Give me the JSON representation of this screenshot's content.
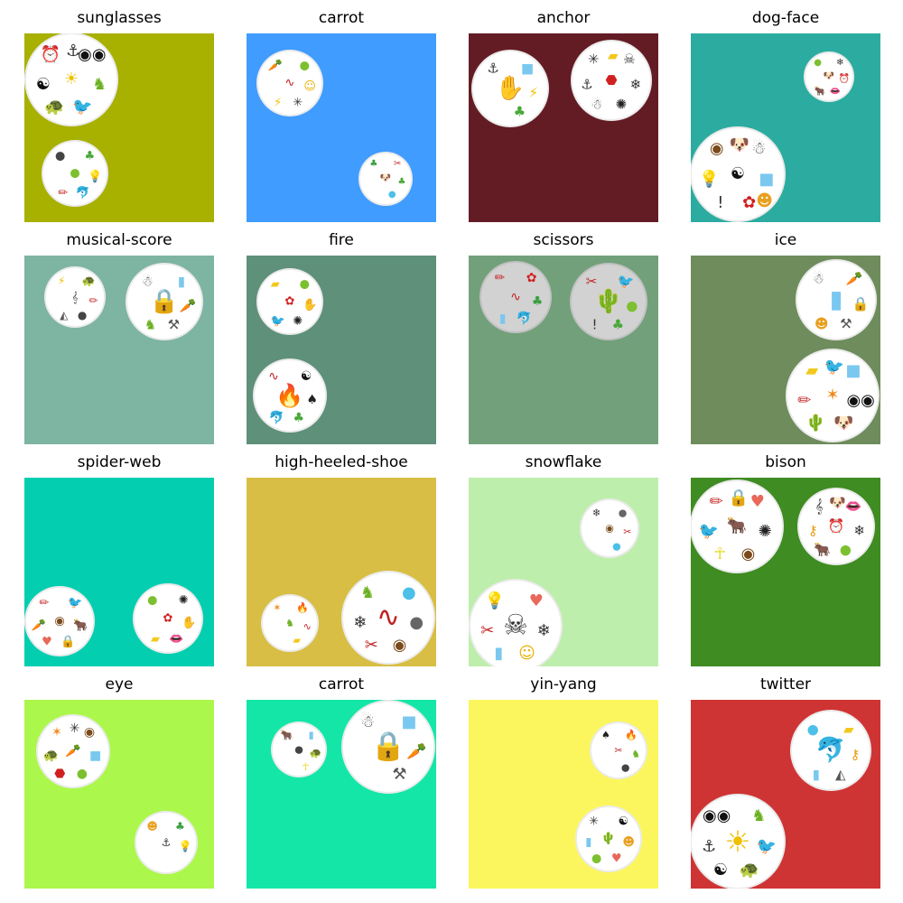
{
  "panels": [
    {
      "label": "sunglasses",
      "bg": "#a8b000",
      "cards": [
        {
          "symbols": [
            "sun",
            "clock",
            "sunglasses",
            "dino",
            "bird",
            "turtle",
            "yinyang",
            "anchor"
          ]
        },
        {
          "symbols": [
            "apple",
            "bomb",
            "leaf",
            "bulb",
            "dolphin",
            "pencil"
          ]
        }
      ]
    },
    {
      "label": "carrot",
      "bg": "#409cff",
      "cards": [
        {
          "symbols": [
            "worm",
            "carrot",
            "apple",
            "smiley",
            "spider",
            "lightning"
          ]
        },
        {
          "symbols": [
            "dog",
            "clover",
            "scissors",
            "leaf",
            "drop"
          ]
        }
      ]
    },
    {
      "label": "anchor",
      "bg": "#641c24",
      "cards": [
        {
          "symbols": [
            "hand",
            "anchor",
            "ice",
            "lightning",
            "leaf"
          ]
        },
        {
          "symbols": [
            "stop",
            "spider",
            "skull",
            "snowflake",
            "spiderweb",
            "snowman",
            "anchor",
            "cheese"
          ]
        }
      ]
    },
    {
      "label": "dog-face",
      "bg": "#2caca0",
      "cards": [
        {
          "symbols": [
            "dog",
            "apple",
            "snowflake",
            "clock",
            "lips",
            "bison"
          ]
        },
        {
          "symbols": [
            "yinyang",
            "eye",
            "snowman",
            "ice",
            "flower",
            "exclam",
            "bulb",
            "dog",
            "ghost"
          ]
        }
      ]
    },
    {
      "label": "musical-score",
      "bg": "#7eb4a2",
      "cards": [
        {
          "symbols": [
            "clef",
            "lightning",
            "turtle",
            "pencil",
            "bomb",
            "igloo"
          ]
        },
        {
          "symbols": [
            "lock",
            "snowman",
            "bottle",
            "carrot",
            "hammer",
            "dino"
          ]
        }
      ]
    },
    {
      "label": "fire",
      "bg": "#5e907a",
      "cards": [
        {
          "symbols": [
            "flower",
            "cheese",
            "apple",
            "hand",
            "spiderweb",
            "bird"
          ]
        },
        {
          "symbols": [
            "fire",
            "worm",
            "yinyang",
            "cat",
            "leaf",
            "dolphin"
          ]
        }
      ]
    },
    {
      "label": "scissors",
      "bg": "#72a07a",
      "cards": [
        {
          "symbols": [
            "worm",
            "pencil",
            "flower",
            "clover",
            "dolphin",
            "bottle"
          ]
        },
        {
          "symbols": [
            "cactus",
            "scissors",
            "bird",
            "apple",
            "leaf",
            "exclam"
          ]
        }
      ]
    },
    {
      "label": "ice",
      "bg": "#6e8c5c",
      "cards": [
        {
          "symbols": [
            "bottle",
            "snowman",
            "carrot",
            "lock",
            "hammer",
            "ghost"
          ]
        },
        {
          "symbols": [
            "maple",
            "cheese",
            "ice",
            "sunglasses",
            "dog",
            "cactus",
            "pencil",
            "bird"
          ]
        }
      ]
    },
    {
      "label": "spider-web",
      "bg": "#04ceb0",
      "cards": [
        {
          "symbols": [
            "eye",
            "pencil",
            "bird",
            "bison",
            "lock",
            "heart",
            "carrot"
          ]
        },
        {
          "symbols": [
            "flower",
            "apple",
            "spiderweb",
            "hand",
            "lips",
            "cheese"
          ]
        }
      ]
    },
    {
      "label": "high-heeled-shoe",
      "bg": "#d8be44",
      "cards": [
        {
          "symbols": [
            "dino",
            "maple",
            "fire",
            "worm",
            "cheese"
          ]
        },
        {
          "symbols": [
            "worm",
            "dino",
            "drop",
            "balloon",
            "eye",
            "scissors",
            "snowflake"
          ]
        }
      ]
    },
    {
      "label": "snowflake",
      "bg": "#bdeeab",
      "cards": [
        {
          "symbols": [
            "eye",
            "snowflake",
            "balloon",
            "scissors",
            "drop"
          ]
        },
        {
          "symbols": [
            "skull",
            "bulb",
            "heart",
            "snowflake",
            "smiley",
            "bottle",
            "scissors"
          ]
        }
      ]
    },
    {
      "label": "bison",
      "bg": "#3f8c22",
      "cards": [
        {
          "symbols": [
            "bison",
            "pencil",
            "heart",
            "spiderweb",
            "eye",
            "figure",
            "bird",
            "lock"
          ]
        },
        {
          "symbols": [
            "clock",
            "clef",
            "lips",
            "snowflake",
            "apple",
            "bison",
            "key",
            "dog"
          ]
        }
      ]
    },
    {
      "label": "eye",
      "bg": "#acf74c",
      "cards": [
        {
          "symbols": [
            "carrot",
            "maple",
            "eye",
            "ice",
            "apple",
            "stop",
            "turtle",
            "spider"
          ]
        },
        {
          "symbols": [
            "anchor",
            "ghost",
            "clover",
            "bulb"
          ]
        }
      ]
    },
    {
      "label": "carrot",
      "bg": "#14e6a8",
      "cards": [
        {
          "symbols": [
            "bomb",
            "bison",
            "bottle",
            "turtle",
            "figure"
          ]
        },
        {
          "symbols": [
            "lock",
            "snowman",
            "ice",
            "carrot",
            "hammer"
          ]
        }
      ]
    },
    {
      "label": "yin-yang",
      "bg": "#fbf65e",
      "cards": [
        {
          "symbols": [
            "scissors",
            "cat",
            "fire",
            "dino",
            "bomb"
          ]
        },
        {
          "symbols": [
            "cactus",
            "spider",
            "yinyang",
            "ghost",
            "heart",
            "apple",
            "bottle"
          ]
        }
      ]
    },
    {
      "label": "twitter",
      "bg": "#cf3434",
      "cards": [
        {
          "symbols": [
            "dolphin",
            "drop",
            "cheese",
            "key",
            "igloo",
            "bottle"
          ]
        },
        {
          "symbols": [
            "sun",
            "sunglasses",
            "dino",
            "bird",
            "turtle",
            "yinyang",
            "anchor"
          ]
        }
      ]
    }
  ],
  "icons": {
    "sun": {
      "g": "☀",
      "c": "#f0c000"
    },
    "clock": {
      "g": "⏰",
      "c": "#b08a20"
    },
    "sunglasses": {
      "g": "◉◉",
      "c": "#111111"
    },
    "dino": {
      "g": "♞",
      "c": "#6ab020"
    },
    "bird": {
      "g": "🐦",
      "c": "#2a82d0"
    },
    "turtle": {
      "g": "🐢",
      "c": "#3e9a2e"
    },
    "yinyang": {
      "g": "☯",
      "c": "#111111"
    },
    "anchor": {
      "g": "⚓",
      "c": "#333333"
    },
    "apple": {
      "g": "●",
      "c": "#7cc030"
    },
    "bomb": {
      "g": "●",
      "c": "#444444"
    },
    "leaf": {
      "g": "♣",
      "c": "#4aa83a"
    },
    "bulb": {
      "g": "💡",
      "c": "#f2d21a"
    },
    "dolphin": {
      "g": "🐬",
      "c": "#2c8cd0"
    },
    "pencil": {
      "g": "✏",
      "c": "#c83030"
    },
    "worm": {
      "g": "∿",
      "c": "#c02020"
    },
    "carrot": {
      "g": "🥕",
      "c": "#f08a1e"
    },
    "smiley": {
      "g": "☺",
      "c": "#e8b000"
    },
    "spider": {
      "g": "✳",
      "c": "#333333"
    },
    "lightning": {
      "g": "⚡",
      "c": "#f0c000"
    },
    "dog": {
      "g": "🐶",
      "c": "#e89a20"
    },
    "clover": {
      "g": "♣",
      "c": "#3aa040"
    },
    "scissors": {
      "g": "✂",
      "c": "#c02828"
    },
    "drop": {
      "g": "●",
      "c": "#4cc0e8"
    },
    "hand": {
      "g": "✋",
      "c": "#e6d81a"
    },
    "ice": {
      "g": "■",
      "c": "#7ac8f0"
    },
    "stop": {
      "g": "⬣",
      "c": "#d02020"
    },
    "skull": {
      "g": "☠",
      "c": "#333333"
    },
    "snowflake": {
      "g": "❄",
      "c": "#333333"
    },
    "spiderweb": {
      "g": "✺",
      "c": "#222222"
    },
    "snowman": {
      "g": "☃",
      "c": "#444444"
    },
    "cheese": {
      "g": "▰",
      "c": "#f2c81e"
    },
    "lips": {
      "g": "👄",
      "c": "#d02020"
    },
    "bison": {
      "g": "🐂",
      "c": "#7a4a1a"
    },
    "eye": {
      "g": "◉",
      "c": "#7a4a1a"
    },
    "flower": {
      "g": "✿",
      "c": "#d02020"
    },
    "exclam": {
      "g": "!",
      "c": "#333333"
    },
    "ghost": {
      "g": "☻",
      "c": "#e8a020"
    },
    "clef": {
      "g": "𝄞",
      "c": "#444444"
    },
    "igloo": {
      "g": "◭",
      "c": "#555555"
    },
    "lock": {
      "g": "🔒",
      "c": "#f0d020"
    },
    "bottle": {
      "g": "▮",
      "c": "#7ac8f0"
    },
    "hammer": {
      "g": "⚒",
      "c": "#555555"
    },
    "fire": {
      "g": "🔥",
      "c": "#f0a010"
    },
    "cat": {
      "g": "♠",
      "c": "#222222"
    },
    "cactus": {
      "g": "🌵",
      "c": "#4aa83a"
    },
    "maple": {
      "g": "✶",
      "c": "#f08a1e"
    },
    "heart": {
      "g": "♥",
      "c": "#e8685a"
    },
    "balloon": {
      "g": "●",
      "c": "#666666"
    },
    "figure": {
      "g": "☥",
      "c": "#e6d81a"
    },
    "key": {
      "g": "⚷",
      "c": "#e89a10"
    }
  }
}
